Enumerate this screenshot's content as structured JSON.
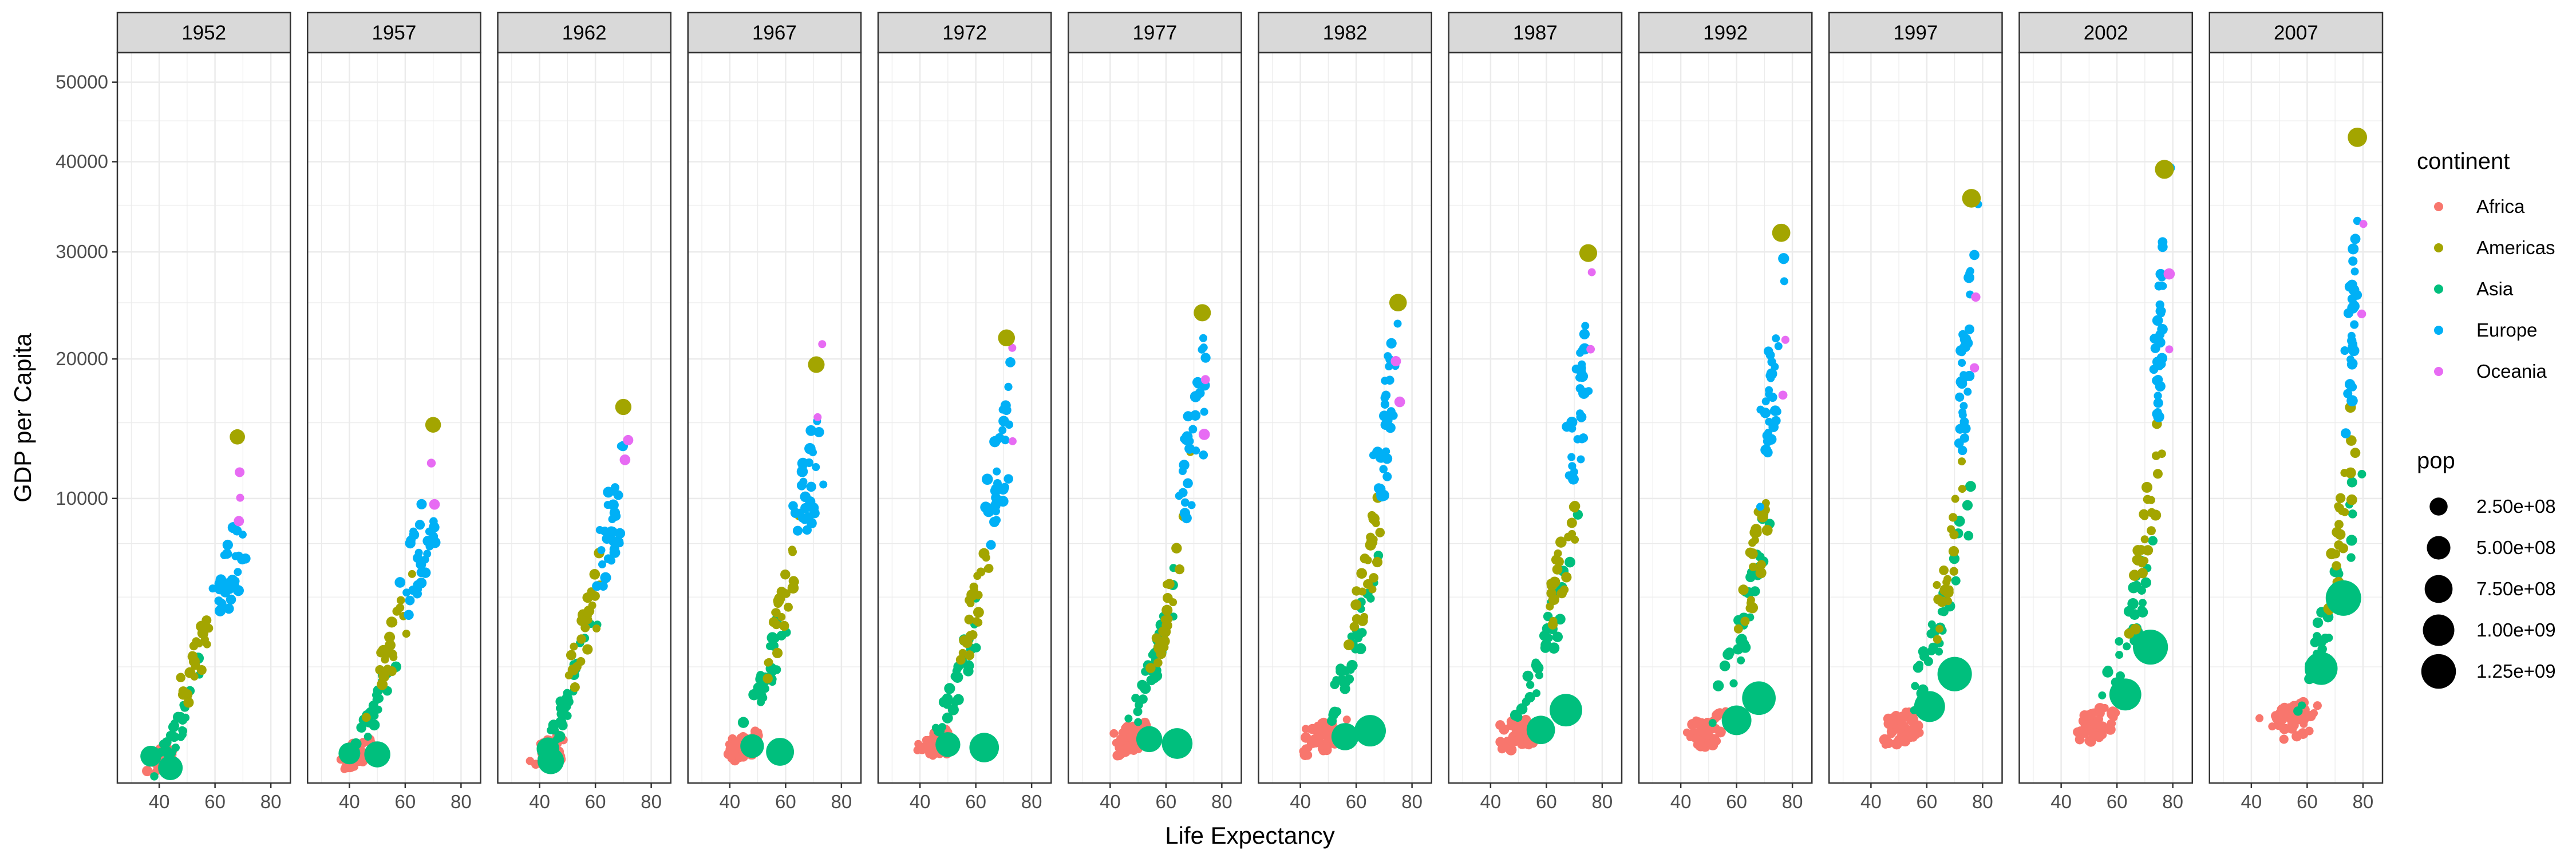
{
  "chart_data": {
    "type": "scatter",
    "title": "",
    "xlabel": "Life Expectancy",
    "ylabel": "GDP per Capita",
    "y_scale": "sqrt",
    "xlim": [
      25,
      87
    ],
    "ylim": [
      240,
      54000
    ],
    "x_ticks": [
      40,
      60,
      80
    ],
    "y_ticks": [
      10000,
      20000,
      30000,
      40000,
      50000
    ],
    "x_tick_labels": [
      "40",
      "60",
      "80"
    ],
    "y_tick_labels": [
      "10000",
      "20000",
      "30000",
      "40000",
      "50000"
    ],
    "grid": true,
    "facets": [
      "1952",
      "1957",
      "1962",
      "1967",
      "1972",
      "1977",
      "1982",
      "1987",
      "1992",
      "1997",
      "2002",
      "2007"
    ],
    "legend": {
      "position": "right",
      "color_title": "continent",
      "size_title": "pop",
      "continents": [
        {
          "name": "Africa",
          "color": "#F8766D"
        },
        {
          "name": "Americas",
          "color": "#A3A500"
        },
        {
          "name": "Asia",
          "color": "#00BF7D"
        },
        {
          "name": "Europe",
          "color": "#00B0F6"
        },
        {
          "name": "Oceania",
          "color": "#E76BF3"
        }
      ],
      "pop_sizes": [
        {
          "label": "2.50e+08",
          "value": 250000000
        },
        {
          "label": "5.00e+08",
          "value": 500000000
        },
        {
          "label": "7.50e+08",
          "value": 750000000
        },
        {
          "label": "1.00e+09",
          "value": 1000000000
        },
        {
          "label": "1.25e+09",
          "value": 1250000000
        }
      ]
    },
    "highlighted_points": [
      {
        "year": "1952",
        "continent": "Asia",
        "x": 44,
        "y": 400,
        "pop": 556000000
      },
      {
        "year": "1952",
        "continent": "Asia",
        "x": 37,
        "y": 550,
        "pop": 372000000
      },
      {
        "year": "1952",
        "continent": "Americas",
        "x": 68,
        "y": 13990,
        "pop": 158000000
      },
      {
        "year": "1952",
        "continent": "Oceania",
        "x": 69,
        "y": 10040,
        "pop": 8700000
      },
      {
        "year": "1957",
        "continent": "Asia",
        "x": 50,
        "y": 576,
        "pop": 637000000
      },
      {
        "year": "1957",
        "continent": "Asia",
        "x": 40,
        "y": 590,
        "pop": 409000000
      },
      {
        "year": "1957",
        "continent": "Americas",
        "x": 70,
        "y": 14850,
        "pop": 172000000
      },
      {
        "year": "1962",
        "continent": "Asia",
        "x": 44,
        "y": 487,
        "pop": 665000000
      },
      {
        "year": "1962",
        "continent": "Asia",
        "x": 43,
        "y": 658,
        "pop": 454000000
      },
      {
        "year": "1962",
        "continent": "Americas",
        "x": 70,
        "y": 16170,
        "pop": 187000000
      },
      {
        "year": "1967",
        "continent": "Asia",
        "x": 58,
        "y": 613,
        "pop": 754000000
      },
      {
        "year": "1967",
        "continent": "Asia",
        "x": 48,
        "y": 700,
        "pop": 506000000
      },
      {
        "year": "1967",
        "continent": "Americas",
        "x": 71,
        "y": 19530,
        "pop": 199000000
      },
      {
        "year": "1972",
        "continent": "Asia",
        "x": 63,
        "y": 677,
        "pop": 862000000
      },
      {
        "year": "1972",
        "continent": "Asia",
        "x": 50,
        "y": 724,
        "pop": 567000000
      },
      {
        "year": "1972",
        "continent": "Americas",
        "x": 71,
        "y": 21810,
        "pop": 210000000
      },
      {
        "year": "1977",
        "continent": "Asia",
        "x": 64,
        "y": 741,
        "pop": 943000000
      },
      {
        "year": "1977",
        "continent": "Asia",
        "x": 54,
        "y": 813,
        "pop": 634000000
      },
      {
        "year": "1977",
        "continent": "Americas",
        "x": 73,
        "y": 24070,
        "pop": 220000000
      },
      {
        "year": "1982",
        "continent": "Asia",
        "x": 65,
        "y": 962,
        "pop": 1000000000
      },
      {
        "year": "1982",
        "continent": "Asia",
        "x": 56,
        "y": 856,
        "pop": 708000000
      },
      {
        "year": "1982",
        "continent": "Americas",
        "x": 75,
        "y": 25010,
        "pop": 232000000
      },
      {
        "year": "1987",
        "continent": "Asia",
        "x": 67,
        "y": 1379,
        "pop": 1084000000
      },
      {
        "year": "1987",
        "continent": "Asia",
        "x": 58,
        "y": 977,
        "pop": 788000000
      },
      {
        "year": "1987",
        "continent": "Americas",
        "x": 75,
        "y": 29880,
        "pop": 242000000
      },
      {
        "year": "1992",
        "continent": "Asia",
        "x": 68,
        "y": 1656,
        "pop": 1165000000
      },
      {
        "year": "1992",
        "continent": "Asia",
        "x": 60,
        "y": 1164,
        "pop": 872000000
      },
      {
        "year": "1992",
        "continent": "Americas",
        "x": 76,
        "y": 32000,
        "pop": 256000000
      },
      {
        "year": "1997",
        "continent": "Asia",
        "x": 70,
        "y": 2289,
        "pop": 1230000000
      },
      {
        "year": "1997",
        "continent": "Asia",
        "x": 61,
        "y": 1459,
        "pop": 960000000
      },
      {
        "year": "1997",
        "continent": "Americas",
        "x": 76,
        "y": 35770,
        "pop": 273000000
      },
      {
        "year": "2002",
        "continent": "Asia",
        "x": 72,
        "y": 3119,
        "pop": 1280000000
      },
      {
        "year": "2002",
        "continent": "Asia",
        "x": 63,
        "y": 1746,
        "pop": 1034000000
      },
      {
        "year": "2002",
        "continent": "Americas",
        "x": 77,
        "y": 39100,
        "pop": 288000000
      },
      {
        "year": "2007",
        "continent": "Asia",
        "x": 73,
        "y": 4959,
        "pop": 1319000000
      },
      {
        "year": "2007",
        "continent": "Asia",
        "x": 65,
        "y": 2452,
        "pop": 1110000000
      },
      {
        "year": "2007",
        "continent": "Americas",
        "x": 78,
        "y": 42950,
        "pop": 301000000
      }
    ]
  }
}
